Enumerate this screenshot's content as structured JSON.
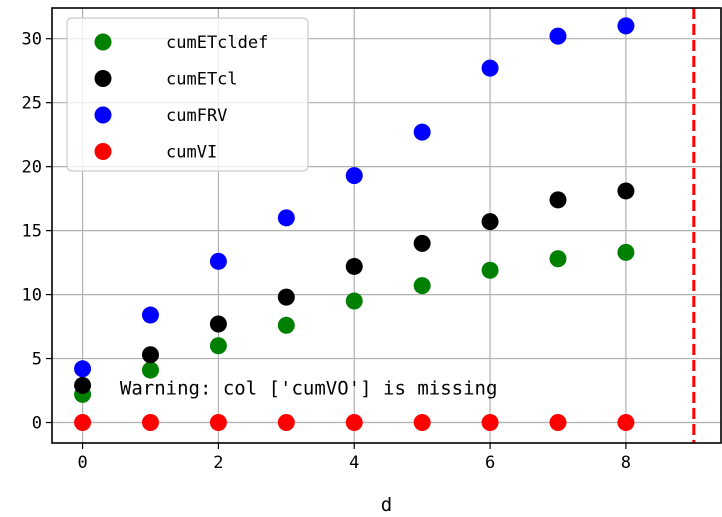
{
  "chart_data": {
    "type": "scatter",
    "title": "",
    "xlabel": "d",
    "ylabel": "",
    "xlim": [
      -0.45,
      9.4
    ],
    "ylim": [
      -1.6,
      32.4
    ],
    "xticks": [
      0,
      2,
      4,
      6,
      8
    ],
    "yticks": [
      0,
      5,
      10,
      15,
      20,
      25,
      30
    ],
    "grid": true,
    "legend_position": "upper-left",
    "vline": {
      "x": 9,
      "color": "#ff0000",
      "style": "dashed"
    },
    "annotation": {
      "text": "Warning: col ['cumVO'] is missing",
      "x": 0.55,
      "y": 2.2
    },
    "x": [
      0,
      1,
      2,
      3,
      4,
      5,
      6,
      7,
      8
    ],
    "series": [
      {
        "name": "cumETcldef",
        "color": "#008000",
        "values": [
          2.2,
          4.1,
          6.0,
          7.6,
          9.5,
          10.7,
          11.9,
          12.8,
          13.3
        ]
      },
      {
        "name": "cumETcl",
        "color": "#000000",
        "values": [
          2.9,
          5.3,
          7.7,
          9.8,
          12.2,
          14.0,
          15.7,
          17.4,
          18.1
        ]
      },
      {
        "name": "cumFRV",
        "color": "#0000ff",
        "values": [
          4.2,
          8.4,
          12.6,
          16.0,
          19.3,
          22.7,
          27.7,
          30.2,
          31.0
        ]
      },
      {
        "name": "cumVI",
        "color": "#ff0000",
        "values": [
          0,
          0,
          0,
          0,
          0,
          0,
          0,
          0,
          0
        ]
      }
    ]
  }
}
